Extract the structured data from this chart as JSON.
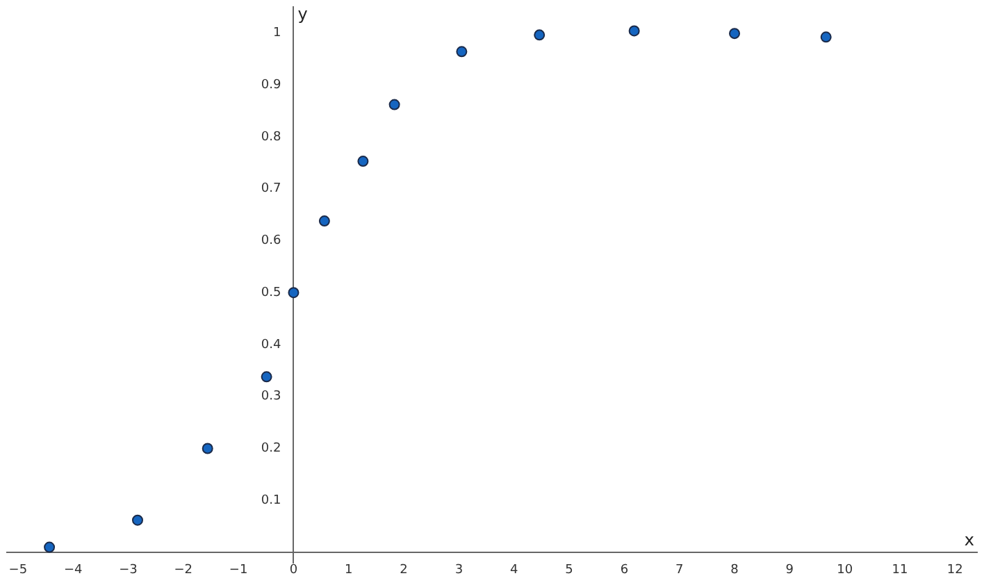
{
  "chart_data": {
    "type": "scatter",
    "xlabel": "x",
    "ylabel": "y",
    "x": [
      -4.43,
      -2.83,
      -1.56,
      -0.49,
      0,
      0.56,
      1.26,
      1.83,
      3.05,
      4.46,
      6.18,
      8.0,
      9.66
    ],
    "values": [
      0.01,
      0.062,
      0.2,
      0.338,
      0.5,
      0.638,
      0.753,
      0.862,
      0.964,
      0.996,
      1.004,
      0.999,
      0.992
    ],
    "color": "#1565c0",
    "marker": "circle",
    "grid": false,
    "legend": false,
    "xlim": [
      -5.2,
      12.4
    ],
    "ylim": [
      -0.02,
      1.05
    ],
    "xticks": [
      {
        "value": -5,
        "label": "−5"
      },
      {
        "value": -4,
        "label": "−4"
      },
      {
        "value": -3,
        "label": "−3"
      },
      {
        "value": -2,
        "label": "−2"
      },
      {
        "value": -1,
        "label": "−1"
      },
      0,
      1,
      2,
      3,
      4,
      5,
      6,
      7,
      8,
      9,
      10,
      11,
      12
    ],
    "yticks": [
      0.1,
      0.2,
      0.3,
      0.4,
      0.5,
      0.6,
      0.7,
      0.8,
      0.9,
      1
    ]
  }
}
